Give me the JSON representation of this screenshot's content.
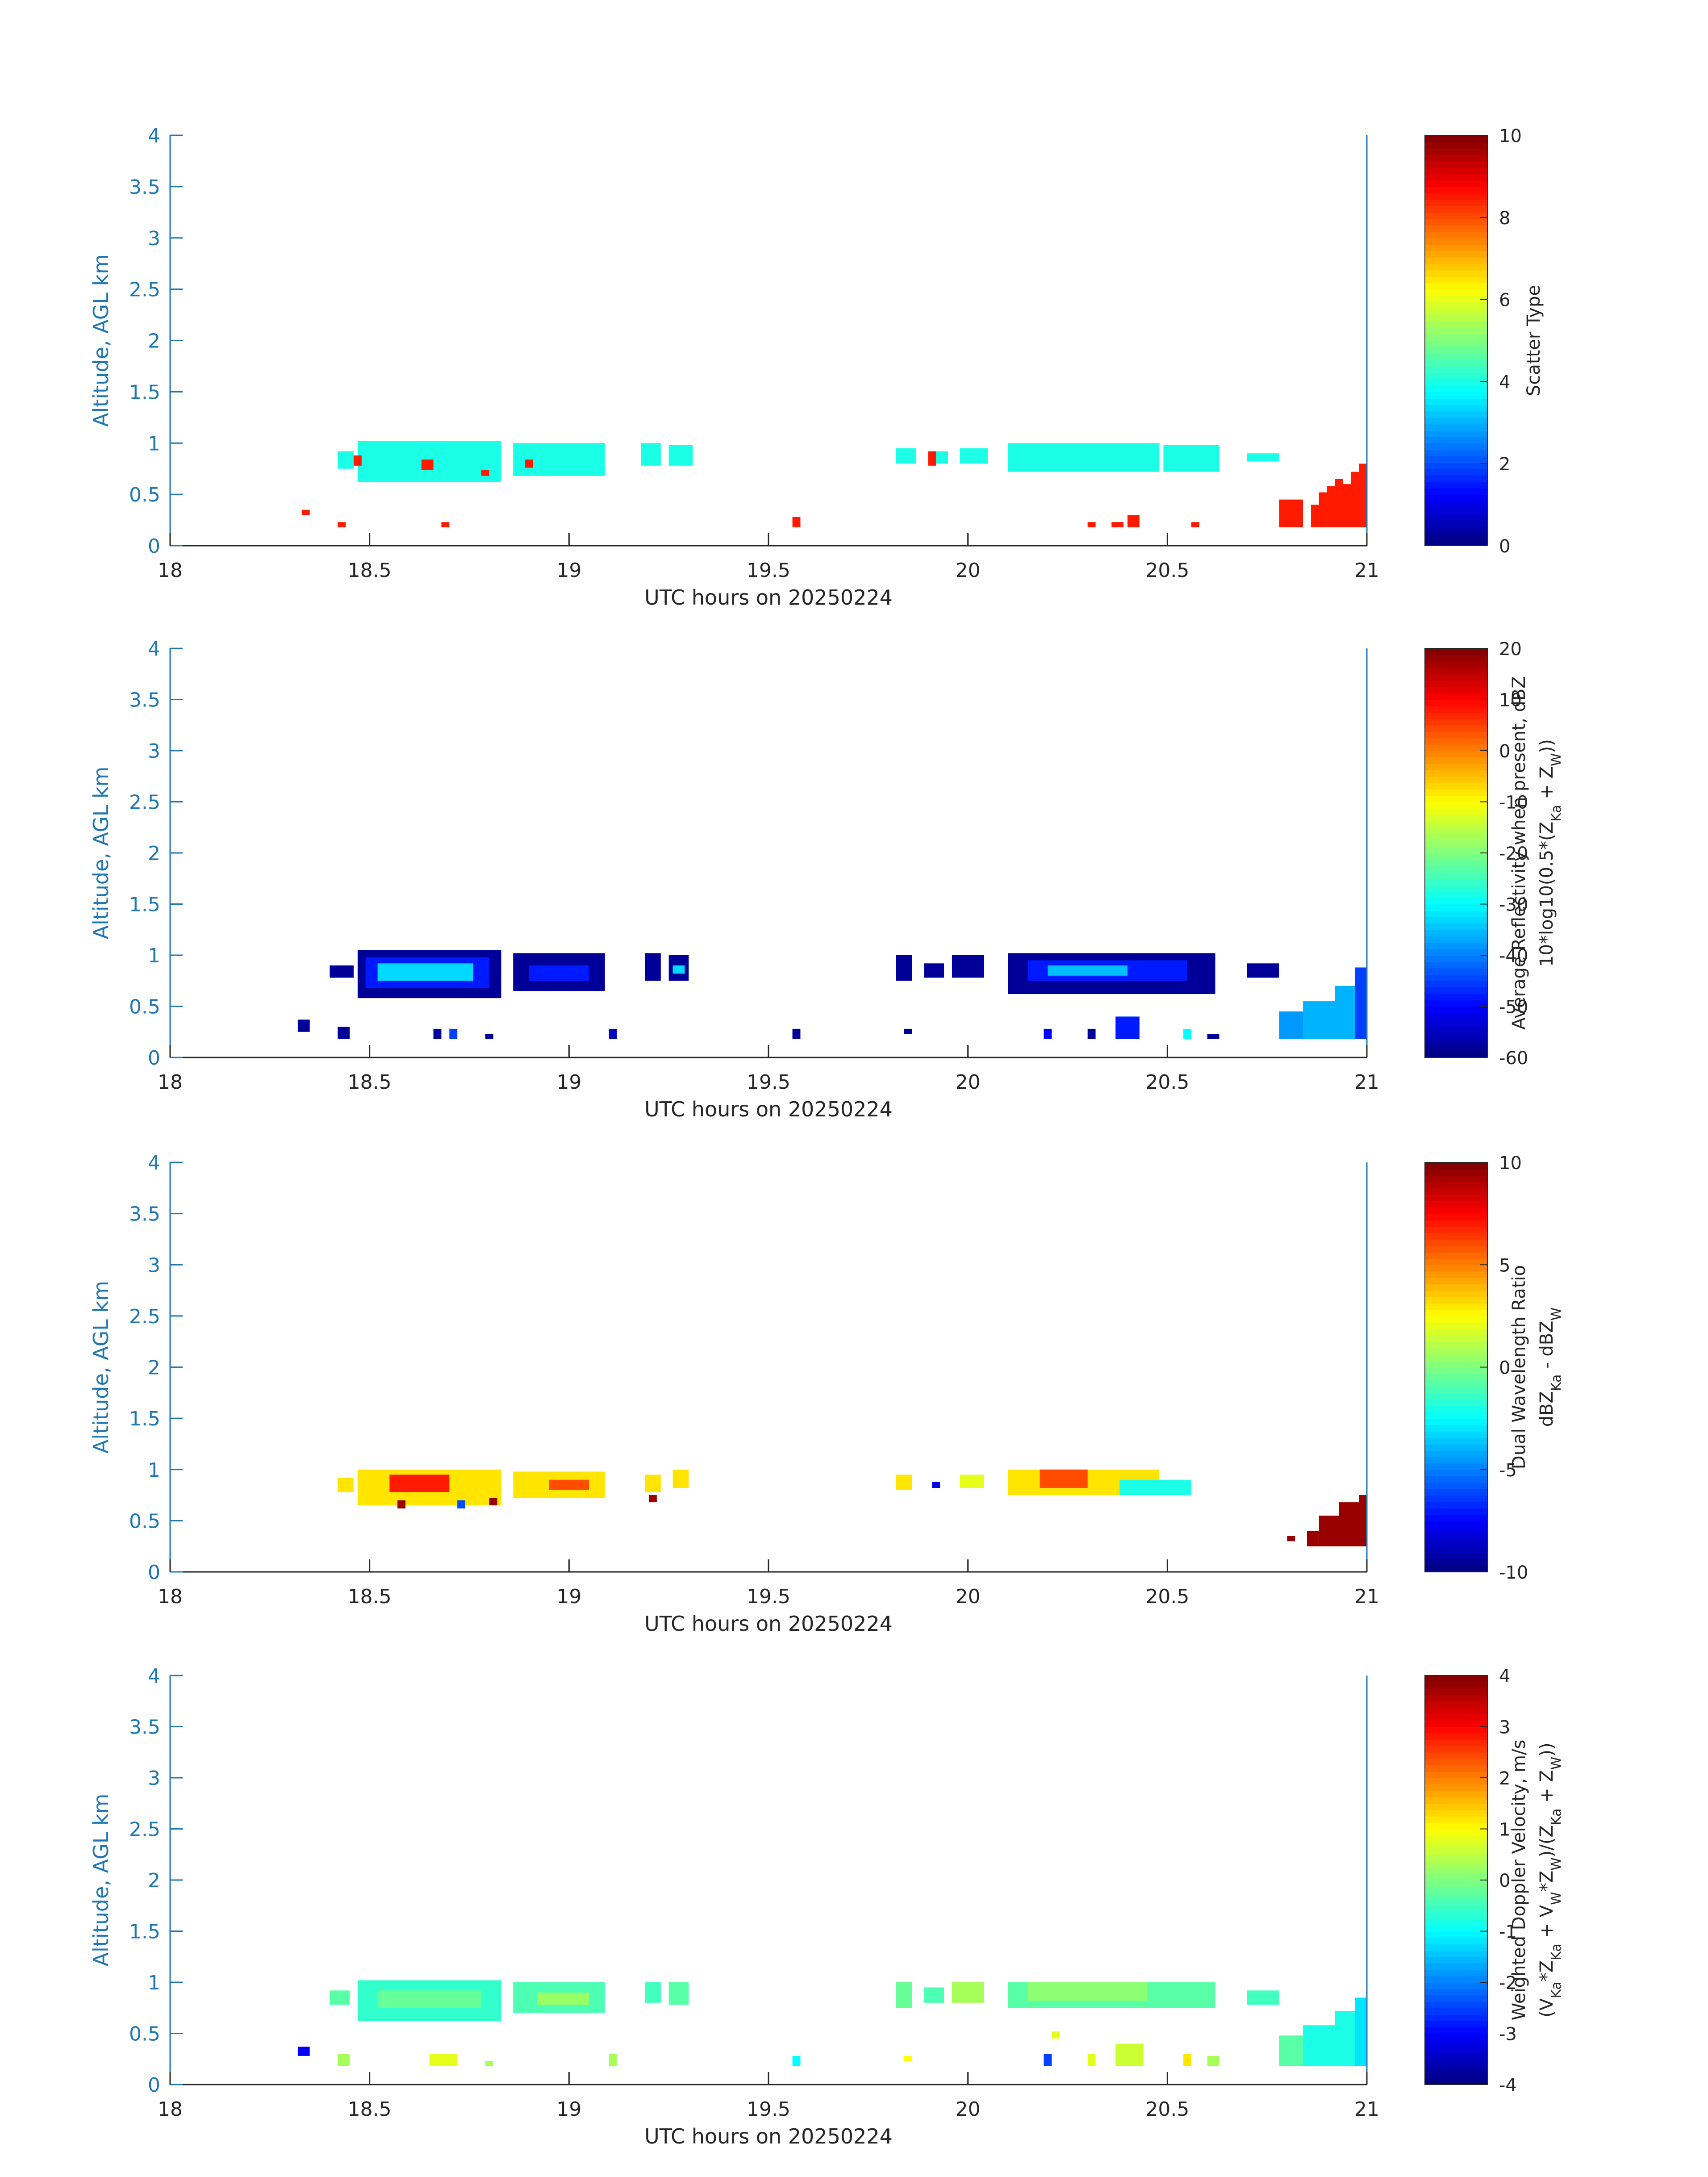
{
  "chart_data": [
    {
      "type": "heatmap",
      "xlabel": "UTC hours on 20250224",
      "ylabel": "Altitude, AGL km",
      "xlim": [
        18,
        21
      ],
      "ylim": [
        0,
        4
      ],
      "xticks": [
        "18",
        "18.5",
        "19",
        "19.5",
        "20",
        "20.5",
        "21"
      ],
      "yticks": [
        "0",
        "0.5",
        "1",
        "1.5",
        "2",
        "2.5",
        "3",
        "3.5",
        "4"
      ],
      "colorbar": {
        "label_lines": [
          "Scatter Type"
        ],
        "range": [
          0,
          10
        ],
        "ticks": [
          "0",
          "2",
          "4",
          "6",
          "8",
          "10"
        ]
      },
      "cells": [
        {
          "x0": 18.42,
          "x1": 18.46,
          "y0": 0.75,
          "y1": 0.92,
          "v": 4
        },
        {
          "x0": 18.47,
          "x1": 18.83,
          "y0": 0.62,
          "y1": 1.02,
          "v": 4
        },
        {
          "x0": 18.86,
          "x1": 19.09,
          "y0": 0.68,
          "y1": 1.0,
          "v": 4
        },
        {
          "x0": 19.18,
          "x1": 19.23,
          "y0": 0.78,
          "y1": 1.0,
          "v": 4
        },
        {
          "x0": 19.25,
          "x1": 19.31,
          "y0": 0.78,
          "y1": 0.98,
          "v": 4
        },
        {
          "x0": 19.82,
          "x1": 19.87,
          "y0": 0.8,
          "y1": 0.95,
          "v": 4
        },
        {
          "x0": 19.91,
          "x1": 19.95,
          "y0": 0.8,
          "y1": 0.92,
          "v": 4
        },
        {
          "x0": 19.98,
          "x1": 20.05,
          "y0": 0.8,
          "y1": 0.95,
          "v": 4
        },
        {
          "x0": 20.1,
          "x1": 20.48,
          "y0": 0.72,
          "y1": 1.0,
          "v": 4
        },
        {
          "x0": 20.49,
          "x1": 20.63,
          "y0": 0.72,
          "y1": 0.98,
          "v": 4
        },
        {
          "x0": 20.7,
          "x1": 20.78,
          "y0": 0.82,
          "y1": 0.9,
          "v": 4
        },
        {
          "x0": 18.33,
          "x1": 18.35,
          "y0": 0.3,
          "y1": 0.35,
          "v": 8.5
        },
        {
          "x0": 18.42,
          "x1": 18.44,
          "y0": 0.18,
          "y1": 0.23,
          "v": 8.5
        },
        {
          "x0": 18.68,
          "x1": 18.7,
          "y0": 0.18,
          "y1": 0.23,
          "v": 8.5
        },
        {
          "x0": 18.46,
          "x1": 18.48,
          "y0": 0.78,
          "y1": 0.88,
          "v": 8.5
        },
        {
          "x0": 18.63,
          "x1": 18.66,
          "y0": 0.74,
          "y1": 0.84,
          "v": 8.5
        },
        {
          "x0": 18.78,
          "x1": 18.8,
          "y0": 0.68,
          "y1": 0.74,
          "v": 8.5
        },
        {
          "x0": 18.89,
          "x1": 18.91,
          "y0": 0.76,
          "y1": 0.84,
          "v": 8.5
        },
        {
          "x0": 19.56,
          "x1": 19.58,
          "y0": 0.18,
          "y1": 0.28,
          "v": 8.5
        },
        {
          "x0": 19.9,
          "x1": 19.92,
          "y0": 0.78,
          "y1": 0.92,
          "v": 8.5
        },
        {
          "x0": 20.3,
          "x1": 20.32,
          "y0": 0.18,
          "y1": 0.23,
          "v": 8.5
        },
        {
          "x0": 20.36,
          "x1": 20.39,
          "y0": 0.18,
          "y1": 0.23,
          "v": 8.5
        },
        {
          "x0": 20.4,
          "x1": 20.43,
          "y0": 0.18,
          "y1": 0.3,
          "v": 8.5
        },
        {
          "x0": 20.56,
          "x1": 20.58,
          "y0": 0.18,
          "y1": 0.23,
          "v": 8.5
        },
        {
          "x0": 20.78,
          "x1": 20.84,
          "y0": 0.18,
          "y1": 0.45,
          "v": 8.5
        },
        {
          "x0": 20.86,
          "x1": 20.88,
          "y0": 0.18,
          "y1": 0.4,
          "v": 8.5
        },
        {
          "x0": 20.88,
          "x1": 20.9,
          "y0": 0.18,
          "y1": 0.52,
          "v": 8.5
        },
        {
          "x0": 20.9,
          "x1": 20.92,
          "y0": 0.18,
          "y1": 0.58,
          "v": 8.5
        },
        {
          "x0": 20.92,
          "x1": 20.94,
          "y0": 0.18,
          "y1": 0.65,
          "v": 8.5
        },
        {
          "x0": 20.94,
          "x1": 20.96,
          "y0": 0.18,
          "y1": 0.6,
          "v": 8.5
        },
        {
          "x0": 20.96,
          "x1": 20.98,
          "y0": 0.18,
          "y1": 0.72,
          "v": 8.5
        },
        {
          "x0": 20.98,
          "x1": 21.0,
          "y0": 0.18,
          "y1": 0.8,
          "v": 8.5
        }
      ]
    },
    {
      "type": "heatmap",
      "xlabel": "UTC hours on 20250224",
      "ylabel": "Altitude, AGL km",
      "xlim": [
        18,
        21
      ],
      "ylim": [
        0,
        4
      ],
      "xticks": [
        "18",
        "18.5",
        "19",
        "19.5",
        "20",
        "20.5",
        "21"
      ],
      "yticks": [
        "0",
        "0.5",
        "1",
        "1.5",
        "2",
        "2.5",
        "3",
        "3.5",
        "4"
      ],
      "colorbar": {
        "label_lines": [
          "Average Reflectivity when present, dBZ",
          "10*log10(0.5*(Z_Ka + Z_W))"
        ],
        "range": [
          -60,
          20
        ],
        "ticks": [
          "-60",
          "-50",
          "-40",
          "-30",
          "-20",
          "-10",
          "0",
          "10",
          "20"
        ]
      },
      "cells": [
        {
          "x0": 18.4,
          "x1": 18.46,
          "y0": 0.78,
          "y1": 0.9,
          "v": -58
        },
        {
          "x0": 18.47,
          "x1": 18.83,
          "y0": 0.58,
          "y1": 1.05,
          "v": -58
        },
        {
          "x0": 18.49,
          "x1": 18.8,
          "y0": 0.68,
          "y1": 0.98,
          "v": -48
        },
        {
          "x0": 18.52,
          "x1": 18.76,
          "y0": 0.75,
          "y1": 0.92,
          "v": -33
        },
        {
          "x0": 18.86,
          "x1": 19.09,
          "y0": 0.65,
          "y1": 1.02,
          "v": -58
        },
        {
          "x0": 18.9,
          "x1": 19.05,
          "y0": 0.75,
          "y1": 0.9,
          "v": -48
        },
        {
          "x0": 19.19,
          "x1": 19.23,
          "y0": 0.75,
          "y1": 1.02,
          "v": -58
        },
        {
          "x0": 19.25,
          "x1": 19.3,
          "y0": 0.75,
          "y1": 1.0,
          "v": -58
        },
        {
          "x0": 19.26,
          "x1": 19.29,
          "y0": 0.82,
          "y1": 0.9,
          "v": -33
        },
        {
          "x0": 19.82,
          "x1": 19.86,
          "y0": 0.75,
          "y1": 1.0,
          "v": -58
        },
        {
          "x0": 19.89,
          "x1": 19.94,
          "y0": 0.78,
          "y1": 0.92,
          "v": -58
        },
        {
          "x0": 19.96,
          "x1": 20.04,
          "y0": 0.78,
          "y1": 1.0,
          "v": -58
        },
        {
          "x0": 20.1,
          "x1": 20.62,
          "y0": 0.62,
          "y1": 1.02,
          "v": -58
        },
        {
          "x0": 20.15,
          "x1": 20.55,
          "y0": 0.75,
          "y1": 0.95,
          "v": -48
        },
        {
          "x0": 20.2,
          "x1": 20.4,
          "y0": 0.8,
          "y1": 0.9,
          "v": -35
        },
        {
          "x0": 20.7,
          "x1": 20.78,
          "y0": 0.78,
          "y1": 0.92,
          "v": -58
        },
        {
          "x0": 18.32,
          "x1": 18.35,
          "y0": 0.25,
          "y1": 0.37,
          "v": -58
        },
        {
          "x0": 18.42,
          "x1": 18.45,
          "y0": 0.18,
          "y1": 0.3,
          "v": -58
        },
        {
          "x0": 18.66,
          "x1": 18.68,
          "y0": 0.18,
          "y1": 0.28,
          "v": -58
        },
        {
          "x0": 18.7,
          "x1": 18.72,
          "y0": 0.18,
          "y1": 0.28,
          "v": -45
        },
        {
          "x0": 18.79,
          "x1": 18.81,
          "y0": 0.18,
          "y1": 0.23,
          "v": -58
        },
        {
          "x0": 19.1,
          "x1": 19.12,
          "y0": 0.18,
          "y1": 0.28,
          "v": -55
        },
        {
          "x0": 19.56,
          "x1": 19.58,
          "y0": 0.18,
          "y1": 0.28,
          "v": -58
        },
        {
          "x0": 19.84,
          "x1": 19.86,
          "y0": 0.23,
          "y1": 0.28,
          "v": -58
        },
        {
          "x0": 20.19,
          "x1": 20.21,
          "y0": 0.18,
          "y1": 0.28,
          "v": -50
        },
        {
          "x0": 20.3,
          "x1": 20.32,
          "y0": 0.18,
          "y1": 0.28,
          "v": -58
        },
        {
          "x0": 20.37,
          "x1": 20.43,
          "y0": 0.18,
          "y1": 0.4,
          "v": -48
        },
        {
          "x0": 20.54,
          "x1": 20.56,
          "y0": 0.18,
          "y1": 0.28,
          "v": -30
        },
        {
          "x0": 20.6,
          "x1": 20.63,
          "y0": 0.18,
          "y1": 0.23,
          "v": -58
        },
        {
          "x0": 20.78,
          "x1": 20.84,
          "y0": 0.18,
          "y1": 0.45,
          "v": -38
        },
        {
          "x0": 20.84,
          "x1": 20.92,
          "y0": 0.18,
          "y1": 0.55,
          "v": -36
        },
        {
          "x0": 20.92,
          "x1": 20.97,
          "y0": 0.18,
          "y1": 0.7,
          "v": -36
        },
        {
          "x0": 20.97,
          "x1": 21.0,
          "y0": 0.18,
          "y1": 0.88,
          "v": -45
        }
      ]
    },
    {
      "type": "heatmap",
      "xlabel": "UTC hours on 20250224",
      "ylabel": "Altitude, AGL km",
      "xlim": [
        18,
        21
      ],
      "ylim": [
        0,
        4
      ],
      "xticks": [
        "18",
        "18.5",
        "19",
        "19.5",
        "20",
        "20.5",
        "21"
      ],
      "yticks": [
        "0",
        "0.5",
        "1",
        "1.5",
        "2",
        "2.5",
        "3",
        "3.5",
        "4"
      ],
      "colorbar": {
        "label_lines": [
          "Dual Wavelength Ratio",
          "dBZ_Ka - dBZ_W"
        ],
        "range": [
          -10,
          10
        ],
        "ticks": [
          "-10",
          "-5",
          "0",
          "5",
          "10"
        ]
      },
      "cells": [
        {
          "x0": 18.42,
          "x1": 18.46,
          "y0": 0.78,
          "y1": 0.92,
          "v": 3
        },
        {
          "x0": 18.47,
          "x1": 18.83,
          "y0": 0.65,
          "y1": 1.0,
          "v": 3
        },
        {
          "x0": 18.55,
          "x1": 18.7,
          "y0": 0.78,
          "y1": 0.95,
          "v": 7
        },
        {
          "x0": 18.86,
          "x1": 19.09,
          "y0": 0.72,
          "y1": 0.98,
          "v": 3
        },
        {
          "x0": 18.95,
          "x1": 19.05,
          "y0": 0.8,
          "y1": 0.9,
          "v": 6
        },
        {
          "x0": 19.19,
          "x1": 19.23,
          "y0": 0.78,
          "y1": 0.95,
          "v": 3
        },
        {
          "x0": 19.26,
          "x1": 19.3,
          "y0": 0.82,
          "y1": 1.0,
          "v": 3
        },
        {
          "x0": 19.82,
          "x1": 19.86,
          "y0": 0.8,
          "y1": 0.95,
          "v": 3
        },
        {
          "x0": 19.91,
          "x1": 19.93,
          "y0": 0.82,
          "y1": 0.88,
          "v": -8
        },
        {
          "x0": 19.98,
          "x1": 20.04,
          "y0": 0.82,
          "y1": 0.95,
          "v": 2
        },
        {
          "x0": 20.1,
          "x1": 20.48,
          "y0": 0.75,
          "y1": 1.0,
          "v": 3
        },
        {
          "x0": 20.18,
          "x1": 20.3,
          "y0": 0.82,
          "y1": 1.0,
          "v": 6
        },
        {
          "x0": 20.38,
          "x1": 20.56,
          "y0": 0.75,
          "y1": 0.9,
          "v": -2
        },
        {
          "x0": 18.57,
          "x1": 18.59,
          "y0": 0.62,
          "y1": 0.7,
          "v": 9.5
        },
        {
          "x0": 18.72,
          "x1": 18.74,
          "y0": 0.62,
          "y1": 0.7,
          "v": -6
        },
        {
          "x0": 18.8,
          "x1": 18.82,
          "y0": 0.65,
          "y1": 0.72,
          "v": 9.5
        },
        {
          "x0": 19.2,
          "x1": 19.22,
          "y0": 0.68,
          "y1": 0.75,
          "v": 9.5
        },
        {
          "x0": 20.8,
          "x1": 20.82,
          "y0": 0.3,
          "y1": 0.35,
          "v": 9.5
        },
        {
          "x0": 20.85,
          "x1": 20.88,
          "y0": 0.25,
          "y1": 0.4,
          "v": 9.5
        },
        {
          "x0": 20.88,
          "x1": 20.93,
          "y0": 0.25,
          "y1": 0.55,
          "v": 9.5
        },
        {
          "x0": 20.93,
          "x1": 20.98,
          "y0": 0.25,
          "y1": 0.68,
          "v": 9.5
        },
        {
          "x0": 20.98,
          "x1": 21.0,
          "y0": 0.25,
          "y1": 0.75,
          "v": 9.5
        }
      ]
    },
    {
      "type": "heatmap",
      "xlabel": "UTC hours on 20250224",
      "ylabel": "Altitude, AGL km",
      "xlim": [
        18,
        21
      ],
      "ylim": [
        0,
        4
      ],
      "xticks": [
        "18",
        "18.5",
        "19",
        "19.5",
        "20",
        "20.5",
        "21"
      ],
      "yticks": [
        "0",
        "0.5",
        "1",
        "1.5",
        "2",
        "2.5",
        "3",
        "3.5",
        "4"
      ],
      "colorbar": {
        "label_lines": [
          "Weighted Doppler Velocity, m/s",
          "(V_Ka*Z_Ka + V_W*Z_W)/(Z_Ka + Z_W))"
        ],
        "range": [
          -4,
          4
        ],
        "ticks": [
          "-4",
          "-3",
          "-2",
          "-1",
          "0",
          "1",
          "2",
          "3",
          "4"
        ]
      },
      "cells": [
        {
          "x0": 18.4,
          "x1": 18.45,
          "y0": 0.78,
          "y1": 0.92,
          "v": -0.3
        },
        {
          "x0": 18.47,
          "x1": 18.83,
          "y0": 0.62,
          "y1": 1.02,
          "v": -0.6
        },
        {
          "x0": 18.52,
          "x1": 18.78,
          "y0": 0.75,
          "y1": 0.92,
          "v": -0.2
        },
        {
          "x0": 18.86,
          "x1": 19.09,
          "y0": 0.7,
          "y1": 1.0,
          "v": -0.4
        },
        {
          "x0": 18.92,
          "x1": 19.05,
          "y0": 0.78,
          "y1": 0.9,
          "v": 0.2
        },
        {
          "x0": 19.19,
          "x1": 19.23,
          "y0": 0.8,
          "y1": 1.0,
          "v": -0.5
        },
        {
          "x0": 19.25,
          "x1": 19.3,
          "y0": 0.78,
          "y1": 1.0,
          "v": -0.3
        },
        {
          "x0": 19.82,
          "x1": 19.86,
          "y0": 0.75,
          "y1": 1.0,
          "v": -0.2
        },
        {
          "x0": 19.89,
          "x1": 19.94,
          "y0": 0.8,
          "y1": 0.95,
          "v": -0.4
        },
        {
          "x0": 19.96,
          "x1": 20.04,
          "y0": 0.8,
          "y1": 1.0,
          "v": 0.3
        },
        {
          "x0": 20.1,
          "x1": 20.62,
          "y0": 0.75,
          "y1": 1.0,
          "v": -0.3
        },
        {
          "x0": 20.15,
          "x1": 20.45,
          "y0": 0.82,
          "y1": 1.0,
          "v": 0.1
        },
        {
          "x0": 20.7,
          "x1": 20.78,
          "y0": 0.78,
          "y1": 0.92,
          "v": -0.5
        },
        {
          "x0": 18.32,
          "x1": 18.35,
          "y0": 0.28,
          "y1": 0.37,
          "v": -3
        },
        {
          "x0": 18.42,
          "x1": 18.45,
          "y0": 0.18,
          "y1": 0.3,
          "v": 0.3
        },
        {
          "x0": 18.65,
          "x1": 18.72,
          "y0": 0.18,
          "y1": 0.3,
          "v": 0.8
        },
        {
          "x0": 18.79,
          "x1": 18.81,
          "y0": 0.18,
          "y1": 0.23,
          "v": 0.3
        },
        {
          "x0": 19.1,
          "x1": 19.12,
          "y0": 0.18,
          "y1": 0.3,
          "v": 0.3
        },
        {
          "x0": 19.56,
          "x1": 19.58,
          "y0": 0.18,
          "y1": 0.28,
          "v": -1
        },
        {
          "x0": 19.84,
          "x1": 19.86,
          "y0": 0.23,
          "y1": 0.28,
          "v": 1
        },
        {
          "x0": 20.19,
          "x1": 20.21,
          "y0": 0.18,
          "y1": 0.3,
          "v": -2.5
        },
        {
          "x0": 20.21,
          "x1": 20.23,
          "y0": 0.45,
          "y1": 0.52,
          "v": 0.8
        },
        {
          "x0": 20.3,
          "x1": 20.32,
          "y0": 0.18,
          "y1": 0.3,
          "v": 0.8
        },
        {
          "x0": 20.37,
          "x1": 20.44,
          "y0": 0.18,
          "y1": 0.4,
          "v": 0.6
        },
        {
          "x0": 20.54,
          "x1": 20.56,
          "y0": 0.18,
          "y1": 0.3,
          "v": 1.2
        },
        {
          "x0": 20.6,
          "x1": 20.63,
          "y0": 0.18,
          "y1": 0.28,
          "v": 0.3
        },
        {
          "x0": 20.78,
          "x1": 20.84,
          "y0": 0.18,
          "y1": 0.48,
          "v": -0.3
        },
        {
          "x0": 20.84,
          "x1": 20.92,
          "y0": 0.18,
          "y1": 0.58,
          "v": -0.8
        },
        {
          "x0": 20.92,
          "x1": 20.97,
          "y0": 0.18,
          "y1": 0.72,
          "v": -0.8
        },
        {
          "x0": 20.97,
          "x1": 21.0,
          "y0": 0.18,
          "y1": 0.85,
          "v": -1.2
        }
      ]
    }
  ]
}
